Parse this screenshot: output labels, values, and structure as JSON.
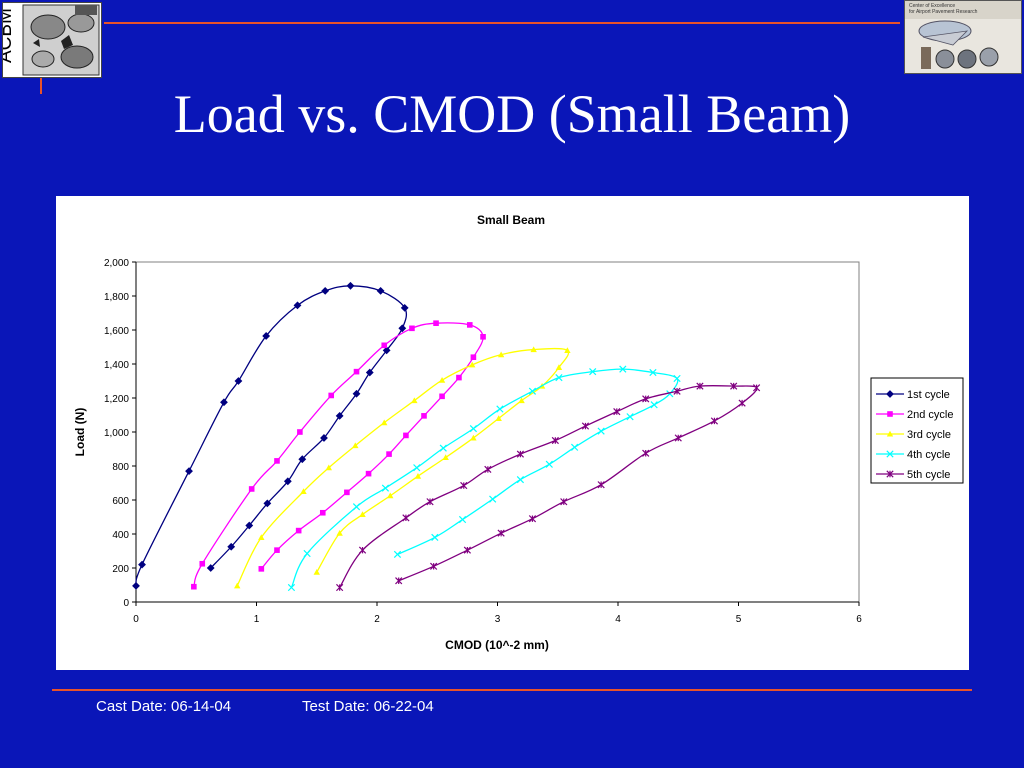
{
  "header": {
    "title": "Load vs. CMOD (Small Beam)",
    "logo_left": {
      "text": "ACBM",
      "icon": "acbm-aggregate-logo"
    },
    "logo_right": {
      "text_line1": "Center of Excellence",
      "text_line2": "for Airport Pavement Research",
      "icon": "airport-research-logo"
    }
  },
  "footer": {
    "cast_date": "Cast Date: 06-14-04",
    "test_date": "Test Date: 06-22-04"
  },
  "colors": {
    "background": "#0a16b8",
    "accent_rule": "#e8532a"
  },
  "chart_data": {
    "type": "scatter",
    "title": "Small Beam",
    "xlabel": "CMOD (10^-2 mm)",
    "ylabel": "Load (N)",
    "xlim": [
      0,
      6
    ],
    "ylim": [
      0,
      2000
    ],
    "xticks": [
      "0",
      "1",
      "2",
      "3",
      "4",
      "5",
      "6"
    ],
    "yticks": [
      "0",
      "200",
      "400",
      "600",
      "800",
      "1,000",
      "1,200",
      "1,400",
      "1,600",
      "1,800",
      "2,000"
    ],
    "grid": false,
    "legend_position": "right",
    "series": [
      {
        "name": "1st cycle",
        "color": "#000080",
        "marker": "diamond",
        "x": [
          0.0,
          0.05,
          0.44,
          0.73,
          0.85,
          1.08,
          1.34,
          1.57,
          1.78,
          2.03,
          2.23,
          2.21,
          2.08,
          1.94,
          1.83,
          1.69,
          1.56,
          1.38,
          1.26,
          1.09,
          0.94,
          0.79,
          0.62
        ],
        "y": [
          95,
          220,
          770,
          1175,
          1300,
          1565,
          1745,
          1830,
          1860,
          1830,
          1730,
          1610,
          1480,
          1350,
          1225,
          1095,
          965,
          840,
          710,
          580,
          450,
          325,
          200
        ]
      },
      {
        "name": "2nd cycle",
        "color": "#ff00ff",
        "marker": "square",
        "x": [
          0.48,
          0.55,
          0.96,
          1.17,
          1.36,
          1.62,
          1.83,
          2.06,
          2.29,
          2.49,
          2.77,
          2.88,
          2.8,
          2.68,
          2.54,
          2.39,
          2.24,
          2.1,
          1.93,
          1.75,
          1.55,
          1.35,
          1.17,
          1.04
        ],
        "y": [
          90,
          225,
          665,
          830,
          1000,
          1215,
          1355,
          1510,
          1610,
          1640,
          1630,
          1560,
          1440,
          1320,
          1210,
          1095,
          980,
          870,
          755,
          645,
          525,
          420,
          305,
          195
        ]
      },
      {
        "name": "3rd cycle",
        "color": "#ffff00",
        "marker": "triangle",
        "x": [
          0.84,
          1.04,
          1.39,
          1.6,
          1.82,
          2.06,
          2.31,
          2.54,
          2.79,
          3.03,
          3.3,
          3.58,
          3.51,
          3.37,
          3.2,
          3.01,
          2.8,
          2.57,
          2.34,
          2.11,
          1.88,
          1.69,
          1.5
        ],
        "y": [
          95,
          380,
          650,
          790,
          920,
          1055,
          1185,
          1305,
          1395,
          1455,
          1485,
          1480,
          1380,
          1270,
          1185,
          1080,
          965,
          850,
          740,
          625,
          515,
          405,
          175
        ]
      },
      {
        "name": "4th cycle",
        "color": "#00ffff",
        "marker": "x",
        "x": [
          1.29,
          1.42,
          1.83,
          2.07,
          2.33,
          2.55,
          2.8,
          3.02,
          3.29,
          3.51,
          3.79,
          4.04,
          4.29,
          4.49,
          4.43,
          4.3,
          4.1,
          3.86,
          3.64,
          3.43,
          3.19,
          2.96,
          2.71,
          2.48,
          2.17
        ],
        "y": [
          85,
          285,
          560,
          670,
          790,
          905,
          1020,
          1135,
          1240,
          1320,
          1355,
          1370,
          1350,
          1315,
          1225,
          1160,
          1090,
          1005,
          910,
          810,
          720,
          605,
          485,
          380,
          280
        ]
      },
      {
        "name": "5th cycle",
        "color": "#800080",
        "marker": "star",
        "x": [
          1.69,
          1.88,
          2.24,
          2.44,
          2.72,
          2.92,
          3.19,
          3.48,
          3.73,
          3.99,
          4.23,
          4.49,
          4.68,
          4.96,
          5.15,
          5.03,
          4.8,
          4.5,
          4.23,
          3.86,
          3.55,
          3.29,
          3.03,
          2.75,
          2.47,
          2.18
        ],
        "y": [
          85,
          305,
          495,
          590,
          685,
          780,
          870,
          950,
          1035,
          1120,
          1195,
          1240,
          1270,
          1270,
          1260,
          1170,
          1065,
          965,
          875,
          690,
          590,
          490,
          405,
          305,
          210,
          125
        ]
      }
    ]
  }
}
